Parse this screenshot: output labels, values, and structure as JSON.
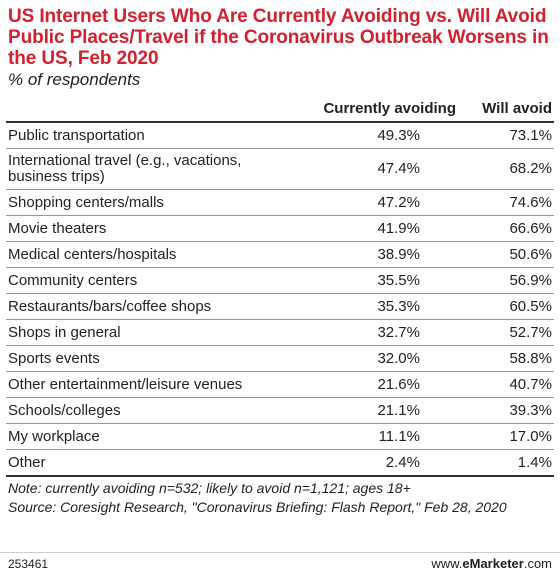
{
  "chart_data": {
    "type": "table",
    "title": "US Internet Users Who Are Currently Avoiding vs. Will Avoid Public Places/Travel if the Coronavirus Outbreak Worsens in the US, Feb 2020",
    "subtitle": "% of respondents",
    "columns": [
      "",
      "Currently avoiding",
      "Will avoid"
    ],
    "rows": [
      {
        "category": "Public transportation",
        "currently_avoiding": "49.3%",
        "will_avoid": "73.1%"
      },
      {
        "category": "International travel (e.g., vacations, business trips)",
        "currently_avoiding": "47.4%",
        "will_avoid": "68.2%"
      },
      {
        "category": "Shopping centers/malls",
        "currently_avoiding": "47.2%",
        "will_avoid": "74.6%"
      },
      {
        "category": "Movie theaters",
        "currently_avoiding": "41.9%",
        "will_avoid": "66.6%"
      },
      {
        "category": "Medical centers/hospitals",
        "currently_avoiding": "38.9%",
        "will_avoid": "50.6%"
      },
      {
        "category": "Community centers",
        "currently_avoiding": "35.5%",
        "will_avoid": "56.9%"
      },
      {
        "category": "Restaurants/bars/coffee shops",
        "currently_avoiding": "35.3%",
        "will_avoid": "60.5%"
      },
      {
        "category": "Shops in general",
        "currently_avoiding": "32.7%",
        "will_avoid": "52.7%"
      },
      {
        "category": "Sports events",
        "currently_avoiding": "32.0%",
        "will_avoid": "58.8%"
      },
      {
        "category": "Other entertainment/leisure venues",
        "currently_avoiding": "21.6%",
        "will_avoid": "40.7%"
      },
      {
        "category": "Schools/colleges",
        "currently_avoiding": "21.1%",
        "will_avoid": "39.3%"
      },
      {
        "category": "My workplace",
        "currently_avoiding": "11.1%",
        "will_avoid": "17.0%"
      },
      {
        "category": "Other",
        "currently_avoiding": "2.4%",
        "will_avoid": "1.4%"
      }
    ],
    "note": "Note: currently avoiding n=532; likely to avoid n=1,121; ages 18+",
    "source": "Source: Coresight Research, \"Coronavirus Briefing: Flash Report,\" Feb 28, 2020"
  },
  "footer": {
    "chart_id": "253461",
    "brand_prefix": "www.",
    "brand_name": "eMarketer",
    "brand_suffix": ".com"
  },
  "colors": {
    "title": "#d2202f"
  }
}
